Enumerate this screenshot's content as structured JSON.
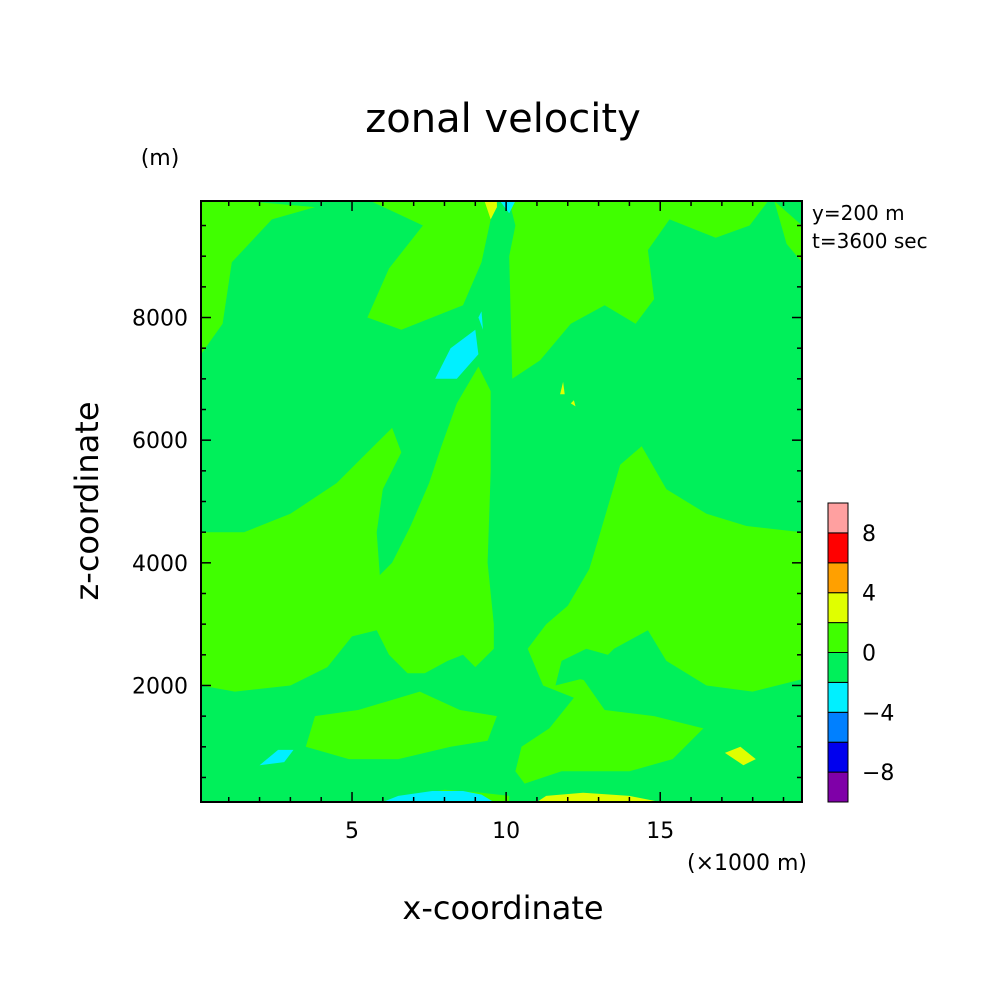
{
  "chart_data": {
    "type": "heatmap",
    "title": "zonal velocity",
    "xlabel": "x-coordinate",
    "ylabel": "z-coordinate",
    "x_unit": "(×1000 m)",
    "y_unit": "(m)",
    "xlim": [
      0.1,
      19.6
    ],
    "ylim": [
      100,
      9900
    ],
    "x_ticks": [
      5,
      10,
      15
    ],
    "y_ticks": [
      2000,
      4000,
      6000,
      8000
    ],
    "annotations": [
      "y=200 m",
      "t=3600 sec"
    ],
    "colorbar": {
      "levels": [
        -10,
        -8,
        -6,
        -4,
        -2,
        0,
        2,
        4,
        6,
        8,
        10
      ],
      "labels": [
        -8,
        -4,
        0,
        4,
        8
      ],
      "colors": [
        "#7f00a8",
        "#0000ee",
        "#0080ff",
        "#00f0ff",
        "#00f05a",
        "#40ff00",
        "#e0ff00",
        "#ffa000",
        "#ff0000",
        "#ffa0a0"
      ]
    },
    "background_value_range": [
      -2,
      0
    ],
    "regions": [
      {
        "value_range": [
          0,
          2
        ],
        "points": [
          [
            0.1,
            7.4
          ],
          [
            0.8,
            7.9
          ],
          [
            1.1,
            8.9
          ],
          [
            2.4,
            9.6
          ],
          [
            3.8,
            9.8
          ],
          [
            1.5,
            9.9
          ],
          [
            0.1,
            9.9
          ]
        ]
      },
      {
        "value_range": [
          0,
          2
        ],
        "points": [
          [
            5.6,
            9.9
          ],
          [
            7.3,
            9.5
          ],
          [
            6.2,
            8.8
          ],
          [
            5.5,
            8.0
          ],
          [
            6.6,
            7.8
          ],
          [
            8.6,
            8.2
          ],
          [
            9.2,
            8.9
          ],
          [
            9.5,
            9.6
          ],
          [
            9.6,
            9.9
          ]
        ]
      },
      {
        "value_range": [
          0,
          2
        ],
        "points": [
          [
            10.1,
            9.9
          ],
          [
            10.3,
            9.5
          ],
          [
            10.1,
            9.0
          ],
          [
            10.2,
            7.0
          ],
          [
            11.1,
            7.3
          ],
          [
            12.1,
            7.9
          ],
          [
            13.2,
            8.2
          ],
          [
            14.2,
            7.9
          ],
          [
            14.8,
            8.3
          ],
          [
            14.6,
            9.1
          ],
          [
            15.3,
            9.6
          ],
          [
            16.8,
            9.3
          ],
          [
            17.9,
            9.5
          ],
          [
            18.5,
            9.9
          ]
        ]
      },
      {
        "value_range": [
          0,
          2
        ],
        "points": [
          [
            18.7,
            9.9
          ],
          [
            19.6,
            9.5
          ],
          [
            19.6,
            8.9
          ],
          [
            19.1,
            9.2
          ]
        ]
      },
      {
        "value_range": [
          0,
          2
        ],
        "points": [
          [
            0.1,
            4.5
          ],
          [
            1.5,
            4.5
          ],
          [
            3.0,
            4.8
          ],
          [
            4.5,
            5.3
          ],
          [
            5.5,
            5.8
          ],
          [
            6.3,
            6.2
          ],
          [
            6.6,
            5.8
          ],
          [
            6.0,
            5.2
          ],
          [
            5.8,
            4.5
          ],
          [
            5.9,
            3.8
          ],
          [
            6.3,
            4.0
          ],
          [
            6.9,
            4.6
          ],
          [
            7.5,
            5.3
          ],
          [
            7.9,
            5.9
          ],
          [
            8.4,
            6.6
          ],
          [
            9.1,
            7.2
          ],
          [
            9.5,
            6.8
          ],
          [
            9.5,
            5.5
          ],
          [
            9.4,
            4.0
          ],
          [
            9.6,
            3.0
          ],
          [
            9.6,
            2.6
          ],
          [
            9.0,
            2.3
          ],
          [
            8.2,
            2.2
          ],
          [
            7.4,
            2.2
          ],
          [
            6.8,
            2.2
          ],
          [
            6.2,
            2.5
          ],
          [
            5.8,
            2.9
          ],
          [
            5.0,
            2.8
          ],
          [
            4.2,
            2.3
          ],
          [
            3.0,
            2.0
          ],
          [
            1.2,
            1.9
          ],
          [
            0.1,
            2.0
          ]
        ]
      },
      {
        "value_range": [
          0,
          2
        ],
        "points": [
          [
            9.7,
            1.5
          ],
          [
            9.4,
            1.1
          ],
          [
            8.2,
            1.0
          ],
          [
            6.5,
            0.8
          ],
          [
            4.9,
            0.8
          ],
          [
            3.5,
            1.0
          ],
          [
            3.8,
            1.5
          ],
          [
            5.2,
            1.6
          ],
          [
            7.2,
            1.9
          ],
          [
            8.5,
            1.6
          ]
        ]
      },
      {
        "value_range": [
          0,
          2
        ],
        "points": [
          [
            12.7,
            3.9
          ],
          [
            13.0,
            4.4
          ],
          [
            13.7,
            5.6
          ],
          [
            14.4,
            5.9
          ],
          [
            15.2,
            5.2
          ],
          [
            16.5,
            4.8
          ],
          [
            17.8,
            4.6
          ],
          [
            19.6,
            4.5
          ],
          [
            19.6,
            2.1
          ],
          [
            18.0,
            1.9
          ],
          [
            16.5,
            2.0
          ],
          [
            15.2,
            2.4
          ],
          [
            14.6,
            2.9
          ],
          [
            13.5,
            2.6
          ],
          [
            12.5,
            2.1
          ],
          [
            13.2,
            1.6
          ],
          [
            14.8,
            1.5
          ],
          [
            16.4,
            1.3
          ],
          [
            15.4,
            0.8
          ],
          [
            14.0,
            0.6
          ],
          [
            11.8,
            0.6
          ],
          [
            10.6,
            0.4
          ],
          [
            10.3,
            0.6
          ],
          [
            10.5,
            1.0
          ],
          [
            11.4,
            1.3
          ],
          [
            12.2,
            1.8
          ],
          [
            11.2,
            2.0
          ],
          [
            10.7,
            2.6
          ],
          [
            11.3,
            3.0
          ],
          [
            12.0,
            3.3
          ]
        ]
      },
      {
        "value_range": [
          0,
          2
        ],
        "points": [
          [
            7.0,
            0.2
          ],
          [
            8.0,
            0.3
          ],
          [
            9.2,
            0.25
          ],
          [
            10.1,
            0.2
          ],
          [
            10.1,
            0.1
          ],
          [
            6.0,
            0.1
          ]
        ]
      },
      {
        "value_range": [
          -2,
          0
        ],
        "points": [
          [
            8.1,
            2.4
          ],
          [
            7.0,
            2.1
          ],
          [
            7.7,
            2.0
          ],
          [
            8.5,
            2.1
          ],
          [
            9.0,
            2.3
          ],
          [
            8.6,
            2.5
          ]
        ]
      },
      {
        "value_range": [
          -2,
          0
        ],
        "points": [
          [
            11.6,
            2.0
          ],
          [
            12.4,
            2.1
          ],
          [
            13.4,
            2.0
          ],
          [
            13.3,
            2.5
          ],
          [
            12.6,
            2.6
          ],
          [
            11.8,
            2.4
          ]
        ]
      },
      {
        "value_range": [
          -4,
          -2
        ],
        "points": [
          [
            7.7,
            7.0
          ],
          [
            8.2,
            7.5
          ],
          [
            9.0,
            7.8
          ],
          [
            9.1,
            7.4
          ],
          [
            8.4,
            7.0
          ]
        ]
      },
      {
        "value_range": [
          -4,
          -2
        ],
        "points": [
          [
            2.0,
            0.7
          ],
          [
            2.6,
            0.95
          ],
          [
            3.1,
            0.95
          ],
          [
            2.8,
            0.75
          ]
        ]
      },
      {
        "value_range": [
          -4,
          -2
        ],
        "points": [
          [
            6.0,
            0.1
          ],
          [
            6.5,
            0.2
          ],
          [
            7.6,
            0.28
          ],
          [
            8.6,
            0.28
          ],
          [
            9.2,
            0.22
          ],
          [
            9.6,
            0.1
          ]
        ]
      },
      {
        "value_range": [
          -4,
          -2
        ],
        "points": [
          [
            9.8,
            9.9
          ],
          [
            10.1,
            9.7
          ],
          [
            10.3,
            9.9
          ]
        ]
      },
      {
        "value_range": [
          -4,
          -2
        ],
        "points": [
          [
            9.1,
            8.0
          ],
          [
            9.25,
            7.8
          ],
          [
            9.2,
            8.1
          ]
        ]
      },
      {
        "value_range": [
          2,
          4
        ],
        "points": [
          [
            9.3,
            9.9
          ],
          [
            9.5,
            9.6
          ],
          [
            9.7,
            9.8
          ],
          [
            9.7,
            9.9
          ]
        ]
      },
      {
        "value_range": [
          2,
          4
        ],
        "points": [
          [
            17.1,
            0.9
          ],
          [
            17.6,
            1.0
          ],
          [
            18.1,
            0.8
          ],
          [
            17.7,
            0.7
          ]
        ]
      },
      {
        "value_range": [
          2,
          4
        ],
        "points": [
          [
            11.0,
            0.1
          ],
          [
            11.3,
            0.2
          ],
          [
            12.5,
            0.25
          ],
          [
            14.0,
            0.2
          ],
          [
            15.0,
            0.1
          ]
        ]
      },
      {
        "value_range": [
          2,
          4
        ],
        "points": [
          [
            11.75,
            6.75
          ],
          [
            11.85,
            6.95
          ],
          [
            11.9,
            6.75
          ]
        ]
      },
      {
        "value_range": [
          2,
          4
        ],
        "points": [
          [
            12.1,
            6.6
          ],
          [
            12.2,
            6.65
          ],
          [
            12.25,
            6.55
          ]
        ]
      }
    ]
  }
}
